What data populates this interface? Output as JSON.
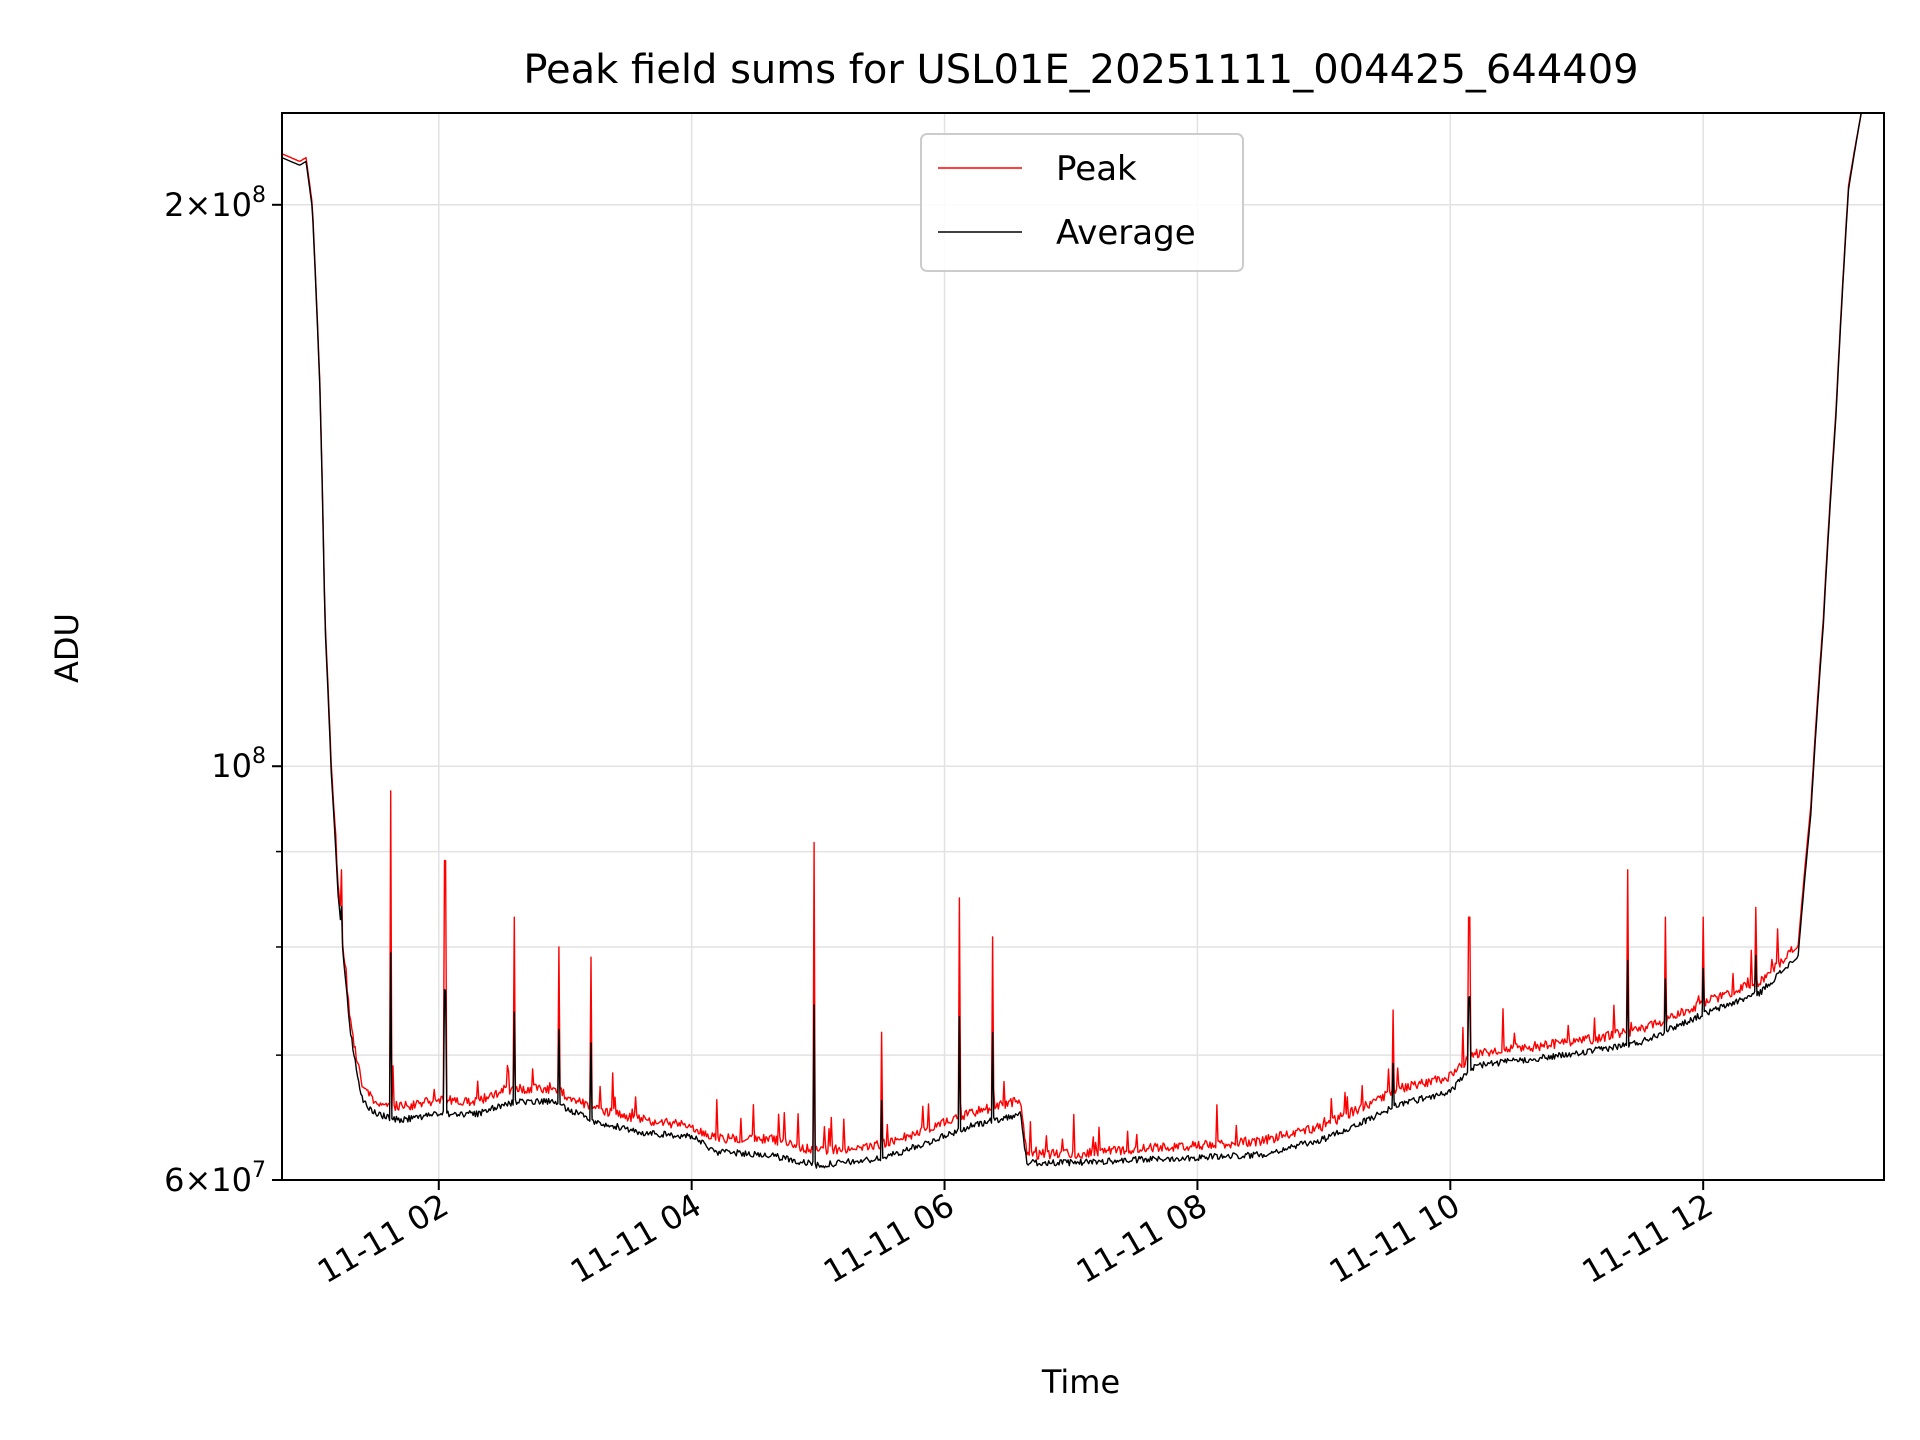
{
  "chart_data": {
    "type": "line",
    "title": "Peak field sums for USL01E_20251111_004425_644409",
    "xlabel": "Time",
    "ylabel": "ADU",
    "yscale": "log",
    "xlim": [
      0.76,
      13.43
    ],
    "ylim": [
      60000000,
      224000000
    ],
    "grid": true,
    "legend_position": "top-center",
    "x_ticks": [
      {
        "value": 2,
        "label": "11-11 02"
      },
      {
        "value": 4,
        "label": "11-11 04"
      },
      {
        "value": 6,
        "label": "11-11 06"
      },
      {
        "value": 8,
        "label": "11-11 08"
      },
      {
        "value": 10,
        "label": "11-11 10"
      },
      {
        "value": 12,
        "label": "11-11 12"
      }
    ],
    "y_ticks": [
      {
        "value": 60000000,
        "mantissa": "6",
        "exponent": "7"
      },
      {
        "value": 100000000,
        "mantissa": "",
        "exponent": "8"
      },
      {
        "value": 200000000,
        "mantissa": "2",
        "exponent": "8"
      }
    ],
    "y_minor_ticks": [
      70000000,
      80000000,
      90000000
    ],
    "series": [
      {
        "name": "Peak",
        "color": "#ff0000",
        "x": [
          0.76,
          0.9,
          0.95,
          1.0,
          1.06,
          1.1,
          1.15,
          1.2,
          1.25,
          1.3,
          1.35,
          1.4,
          1.5,
          1.7,
          2.0,
          2.3,
          2.6,
          2.9,
          3.2,
          3.6,
          4.0,
          4.2,
          4.6,
          5.0,
          5.5,
          5.8,
          6.2,
          6.6,
          6.65,
          7.0,
          7.5,
          8.0,
          8.5,
          9.0,
          9.3,
          9.6,
          10.0,
          10.1,
          10.2,
          10.6,
          11.0,
          11.5,
          12.0,
          12.45,
          12.75,
          12.85,
          12.95,
          13.05,
          13.15,
          13.25,
          13.43
        ],
        "y": [
          213000000,
          211000000,
          212000000,
          200000000,
          160000000,
          120000000,
          100000000,
          87000000,
          79000000,
          73000000,
          69500000,
          67000000,
          66000000,
          65500000,
          66000000,
          66000000,
          67000000,
          67000000,
          65500000,
          64500000,
          64000000,
          63000000,
          63000000,
          62000000,
          62500000,
          63500000,
          65000000,
          66000000,
          61800000,
          61800000,
          62200000,
          62500000,
          62800000,
          64000000,
          65500000,
          67000000,
          68000000,
          69000000,
          70000000,
          70500000,
          71000000,
          72000000,
          74500000,
          76500000,
          80000000,
          95000000,
          120000000,
          155000000,
          205000000,
          224000000,
          224000000
        ]
      },
      {
        "name": "Average",
        "color": "#000000",
        "x": [
          0.76,
          0.9,
          0.95,
          1.0,
          1.06,
          1.1,
          1.15,
          1.2,
          1.25,
          1.3,
          1.35,
          1.4,
          1.5,
          1.7,
          2.0,
          2.3,
          2.6,
          2.9,
          3.2,
          3.6,
          4.0,
          4.2,
          4.6,
          5.0,
          5.5,
          5.8,
          6.2,
          6.6,
          6.65,
          7.0,
          7.5,
          8.0,
          8.5,
          9.0,
          9.3,
          9.6,
          10.0,
          10.1,
          10.2,
          10.6,
          11.0,
          11.5,
          12.0,
          12.45,
          12.75,
          12.85,
          12.95,
          13.05,
          13.15,
          13.25,
          13.43
        ],
        "y": [
          212000000,
          210000000,
          211000000,
          199000000,
          159000000,
          119000000,
          99000000,
          86000000,
          78000000,
          72000000,
          68500000,
          66000000,
          65000000,
          64500000,
          65000000,
          65000000,
          66000000,
          66000000,
          64500000,
          63500000,
          63200000,
          62000000,
          61800000,
          61000000,
          61500000,
          62500000,
          64000000,
          65000000,
          61200000,
          61200000,
          61400000,
          61600000,
          61800000,
          63000000,
          64300000,
          65800000,
          66800000,
          68000000,
          69000000,
          69500000,
          70000000,
          71000000,
          73500000,
          75500000,
          79000000,
          94000000,
          119000000,
          154000000,
          204000000,
          224000000,
          224000000
        ]
      }
    ],
    "spikes": [
      {
        "x": 1.23,
        "y": 88000000
      },
      {
        "x": 1.62,
        "y": 97000000
      },
      {
        "x": 2.05,
        "y": 89000000
      },
      {
        "x": 2.6,
        "y": 83000000
      },
      {
        "x": 2.95,
        "y": 80000000
      },
      {
        "x": 3.2,
        "y": 79000000
      },
      {
        "x": 4.97,
        "y": 91000000
      },
      {
        "x": 5.5,
        "y": 72000000
      },
      {
        "x": 6.12,
        "y": 85000000
      },
      {
        "x": 6.38,
        "y": 81000000
      },
      {
        "x": 9.55,
        "y": 74000000
      },
      {
        "x": 10.15,
        "y": 83000000
      },
      {
        "x": 11.4,
        "y": 88000000
      },
      {
        "x": 11.7,
        "y": 83000000
      },
      {
        "x": 12.0,
        "y": 83000000
      },
      {
        "x": 12.42,
        "y": 84000000
      }
    ]
  }
}
